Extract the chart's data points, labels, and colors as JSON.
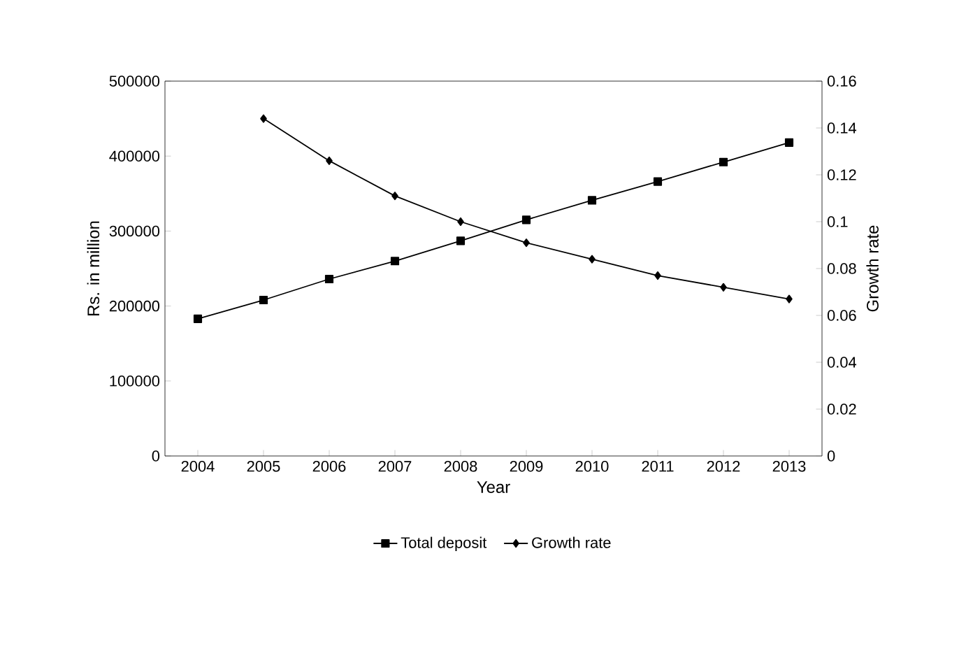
{
  "chart_data": {
    "type": "line",
    "xlabel": "Year",
    "ylabel": "Rs. in million",
    "y2label": "Growth rate",
    "categories": [
      "2004",
      "2005",
      "2006",
      "2007",
      "2008",
      "2009",
      "2010",
      "2011",
      "2012",
      "2013"
    ],
    "series": [
      {
        "name": "Total deposit",
        "color": "#000000",
        "marker": "square",
        "values": [
          183000,
          208000,
          236000,
          260000,
          287000,
          315000,
          341000,
          366000,
          392000,
          418000
        ]
      },
      {
        "name": "Growth rate",
        "color": "#000000",
        "marker": "diamond",
        "axis": "y2",
        "values": [
          null,
          0.144,
          0.126,
          0.111,
          0.1,
          0.091,
          0.084,
          0.077,
          0.072,
          0.067
        ]
      }
    ],
    "ylim": [
      0,
      500000
    ],
    "yticks": [
      0,
      100000,
      200000,
      300000,
      400000,
      500000
    ],
    "y2lim": [
      0,
      0.16
    ],
    "y2ticks": [
      0,
      0.02,
      0.04,
      0.06,
      0.08,
      0.1,
      0.12,
      0.14,
      0.16
    ],
    "legend": "bottom",
    "grid": false,
    "line_style": "solid"
  }
}
